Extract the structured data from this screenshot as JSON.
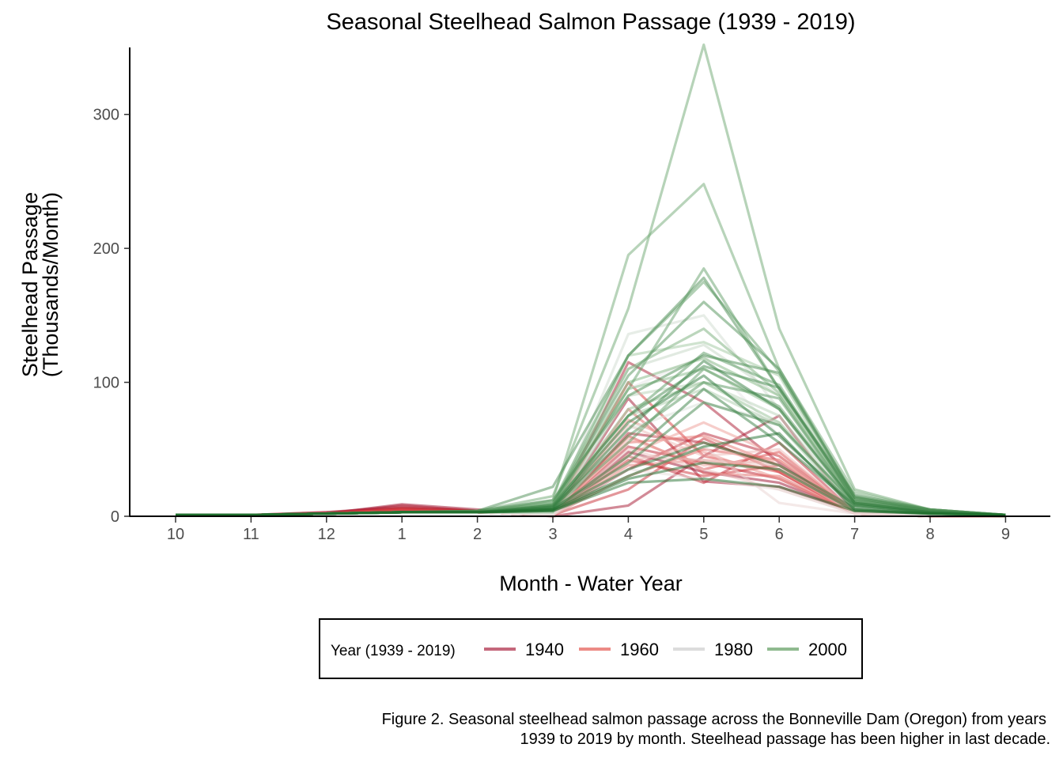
{
  "chart_data": {
    "type": "line",
    "title": "Seasonal Steelhead Salmon Passage (1939 - 2019)",
    "xlabel": "Month - Water Year",
    "ylabel_line1": "Steelhead Passage",
    "ylabel_line2": "(Thousands/Month)",
    "x_categories": [
      "10",
      "11",
      "12",
      "1",
      "2",
      "3",
      "4",
      "5",
      "6",
      "7",
      "8",
      "9"
    ],
    "y_ticks": [
      0,
      100,
      200,
      300
    ],
    "ylim": [
      0,
      350
    ],
    "grid": false,
    "legend": {
      "title": "Year (1939 - 2019)",
      "position": "bottom",
      "entries": [
        {
          "label": "1940",
          "color": "#c4677b"
        },
        {
          "label": "1960",
          "color": "#ec8b86"
        },
        {
          "label": "1980",
          "color": "#dcdcdc"
        },
        {
          "label": "2000",
          "color": "#8fba8f"
        }
      ]
    },
    "color_scale": {
      "years": [
        1939,
        1950,
        1965,
        1980,
        1995,
        2019
      ],
      "colors": [
        "#9b0f2d",
        "#d9383a",
        "#f0a39c",
        "#e6e6e6",
        "#8fbf8f",
        "#1b6b2a"
      ]
    },
    "caption_line1": "Figure 2. Seasonal steelhead salmon passage across the Bonneville Dam (Oregon) from years",
    "caption_line2": "1939 to 2019 by month. Steelhead passage has been higher in last decade.",
    "series": [
      {
        "year": 1939,
        "values": [
          1,
          1,
          2,
          9,
          5,
          1,
          48,
          33,
          25,
          3,
          0,
          0
        ]
      },
      {
        "year": 1940,
        "values": [
          1,
          1,
          3,
          7,
          4,
          1,
          88,
          26,
          22,
          3,
          0,
          0
        ]
      },
      {
        "year": 1941,
        "values": [
          1,
          1,
          2,
          6,
          4,
          0,
          8,
          45,
          75,
          2,
          0,
          0
        ]
      },
      {
        "year": 1942,
        "values": [
          1,
          1,
          2,
          5,
          3,
          1,
          115,
          85,
          40,
          3,
          0,
          0
        ]
      },
      {
        "year": 1943,
        "values": [
          1,
          1,
          2,
          8,
          4,
          1,
          62,
          55,
          38,
          4,
          1,
          0
        ]
      },
      {
        "year": 1944,
        "values": [
          1,
          1,
          3,
          6,
          4,
          1,
          35,
          62,
          45,
          3,
          0,
          0
        ]
      },
      {
        "year": 1945,
        "values": [
          1,
          1,
          2,
          5,
          3,
          1,
          52,
          40,
          28,
          2,
          0,
          0
        ]
      },
      {
        "year": 1946,
        "values": [
          1,
          1,
          2,
          4,
          4,
          1,
          45,
          25,
          55,
          3,
          0,
          0
        ]
      },
      {
        "year": 1947,
        "values": [
          1,
          1,
          2,
          5,
          3,
          1,
          20,
          58,
          33,
          2,
          0,
          0
        ]
      },
      {
        "year": 1948,
        "values": [
          1,
          1,
          2,
          6,
          4,
          1,
          42,
          30,
          38,
          2,
          0,
          0
        ]
      },
      {
        "year": 1950,
        "values": [
          1,
          1,
          2,
          4,
          3,
          1,
          100,
          45,
          33,
          3,
          0,
          0
        ]
      },
      {
        "year": 1952,
        "values": [
          1,
          1,
          2,
          5,
          3,
          1,
          60,
          35,
          48,
          3,
          0,
          0
        ]
      },
      {
        "year": 1954,
        "values": [
          1,
          1,
          2,
          4,
          3,
          1,
          30,
          50,
          42,
          3,
          0,
          0
        ]
      },
      {
        "year": 1956,
        "values": [
          1,
          1,
          2,
          3,
          3,
          1,
          80,
          32,
          30,
          2,
          0,
          0
        ]
      },
      {
        "year": 1958,
        "values": [
          1,
          1,
          2,
          3,
          3,
          1,
          55,
          60,
          38,
          3,
          0,
          0
        ]
      },
      {
        "year": 1960,
        "values": [
          1,
          1,
          2,
          3,
          3,
          1,
          38,
          42,
          35,
          2,
          0,
          0
        ]
      },
      {
        "year": 1962,
        "values": [
          1,
          1,
          2,
          3,
          3,
          1,
          72,
          48,
          28,
          2,
          0,
          0
        ]
      },
      {
        "year": 1964,
        "values": [
          1,
          1,
          2,
          3,
          3,
          1,
          46,
          70,
          45,
          3,
          0,
          0
        ]
      },
      {
        "year": 1966,
        "values": [
          1,
          1,
          2,
          3,
          3,
          1,
          58,
          38,
          42,
          3,
          0,
          0
        ]
      },
      {
        "year": 1968,
        "values": [
          1,
          1,
          2,
          3,
          3,
          1,
          40,
          55,
          35,
          2,
          0,
          0
        ]
      },
      {
        "year": 1970,
        "values": [
          1,
          1,
          2,
          3,
          3,
          1,
          68,
          45,
          50,
          3,
          0,
          0
        ]
      },
      {
        "year": 1972,
        "values": [
          1,
          1,
          2,
          3,
          3,
          1,
          50,
          35,
          20,
          2,
          0,
          0
        ]
      },
      {
        "year": 1974,
        "values": [
          1,
          1,
          2,
          3,
          3,
          1,
          45,
          42,
          38,
          2,
          0,
          0
        ]
      },
      {
        "year": 1976,
        "values": [
          1,
          1,
          2,
          3,
          3,
          1,
          30,
          52,
          10,
          2,
          0,
          0
        ]
      },
      {
        "year": 1978,
        "values": [
          1,
          1,
          2,
          3,
          3,
          1,
          35,
          28,
          20,
          2,
          0,
          0
        ]
      },
      {
        "year": 1980,
        "values": [
          1,
          1,
          2,
          3,
          3,
          2,
          95,
          120,
          60,
          4,
          1,
          0
        ]
      },
      {
        "year": 1982,
        "values": [
          1,
          1,
          2,
          3,
          3,
          2,
          65,
          85,
          70,
          5,
          1,
          0
        ]
      },
      {
        "year": 1984,
        "values": [
          1,
          1,
          2,
          3,
          3,
          3,
          136,
          150,
          80,
          6,
          1,
          0
        ]
      },
      {
        "year": 1986,
        "values": [
          1,
          1,
          2,
          3,
          3,
          3,
          110,
          128,
          90,
          8,
          2,
          0
        ]
      },
      {
        "year": 1988,
        "values": [
          1,
          1,
          2,
          3,
          3,
          3,
          90,
          100,
          75,
          6,
          2,
          0
        ]
      },
      {
        "year": 1990,
        "values": [
          1,
          1,
          2,
          3,
          3,
          3,
          75,
          95,
          68,
          5,
          2,
          0
        ]
      },
      {
        "year": 1992,
        "values": [
          1,
          1,
          2,
          3,
          3,
          5,
          120,
          130,
          105,
          10,
          3,
          1
        ]
      },
      {
        "year": 1994,
        "values": [
          1,
          1,
          2,
          3,
          3,
          5,
          80,
          100,
          70,
          8,
          3,
          1
        ]
      },
      {
        "year": 1996,
        "values": [
          1,
          1,
          2,
          3,
          3,
          6,
          95,
          110,
          80,
          9,
          3,
          1
        ]
      },
      {
        "year": 1998,
        "values": [
          1,
          1,
          2,
          3,
          3,
          8,
          100,
          118,
          90,
          10,
          3,
          1
        ]
      },
      {
        "year": 2000,
        "values": [
          1,
          1,
          2,
          3,
          3,
          10,
          110,
          140,
          92,
          12,
          4,
          1
        ]
      },
      {
        "year": 2001,
        "values": [
          1,
          1,
          2,
          3,
          3,
          12,
          195,
          248,
          110,
          18,
          5,
          1
        ]
      },
      {
        "year": 2002,
        "values": [
          1,
          1,
          2,
          3,
          4,
          15,
          155,
          352,
          140,
          20,
          5,
          1
        ]
      },
      {
        "year": 2003,
        "values": [
          1,
          1,
          2,
          3,
          4,
          10,
          120,
          175,
          108,
          15,
          5,
          1
        ]
      },
      {
        "year": 2004,
        "values": [
          1,
          1,
          2,
          3,
          3,
          8,
          95,
          185,
          95,
          14,
          4,
          1
        ]
      },
      {
        "year": 2005,
        "values": [
          1,
          1,
          2,
          3,
          3,
          6,
          55,
          110,
          82,
          10,
          4,
          1
        ]
      },
      {
        "year": 2006,
        "values": [
          1,
          1,
          2,
          3,
          3,
          8,
          75,
          122,
          98,
          12,
          4,
          1
        ]
      },
      {
        "year": 2007,
        "values": [
          1,
          1,
          2,
          3,
          3,
          7,
          60,
          100,
          88,
          10,
          3,
          1
        ]
      },
      {
        "year": 2008,
        "values": [
          1,
          1,
          2,
          3,
          3,
          9,
          105,
          160,
          110,
          14,
          4,
          1
        ]
      },
      {
        "year": 2009,
        "values": [
          1,
          1,
          2,
          3,
          4,
          22,
          120,
          178,
          95,
          16,
          5,
          1
        ]
      },
      {
        "year": 2010,
        "values": [
          1,
          1,
          2,
          3,
          4,
          12,
          90,
          120,
          107,
          14,
          5,
          1
        ]
      },
      {
        "year": 2011,
        "values": [
          1,
          1,
          2,
          3,
          3,
          8,
          75,
          112,
          96,
          12,
          4,
          1
        ]
      },
      {
        "year": 2012,
        "values": [
          1,
          1,
          2,
          3,
          3,
          6,
          40,
          85,
          68,
          10,
          3,
          1
        ]
      },
      {
        "year": 2013,
        "values": [
          1,
          1,
          2,
          3,
          3,
          5,
          45,
          95,
          55,
          8,
          3,
          1
        ]
      },
      {
        "year": 2014,
        "values": [
          1,
          1,
          2,
          3,
          3,
          6,
          65,
          116,
          80,
          10,
          3,
          1
        ]
      },
      {
        "year": 2015,
        "values": [
          1,
          1,
          2,
          3,
          3,
          7,
          70,
          105,
          60,
          8,
          3,
          1
        ]
      },
      {
        "year": 2016,
        "values": [
          1,
          1,
          2,
          3,
          3,
          5,
          35,
          55,
          38,
          6,
          2,
          1
        ]
      },
      {
        "year": 2017,
        "values": [
          1,
          1,
          2,
          3,
          3,
          4,
          25,
          28,
          22,
          4,
          2,
          1
        ]
      },
      {
        "year": 2018,
        "values": [
          1,
          1,
          2,
          3,
          3,
          5,
          30,
          52,
          62,
          5,
          2,
          1
        ]
      },
      {
        "year": 2019,
        "values": [
          1,
          1,
          2,
          3,
          3,
          4,
          28,
          40,
          35,
          4,
          2,
          1
        ]
      }
    ]
  }
}
